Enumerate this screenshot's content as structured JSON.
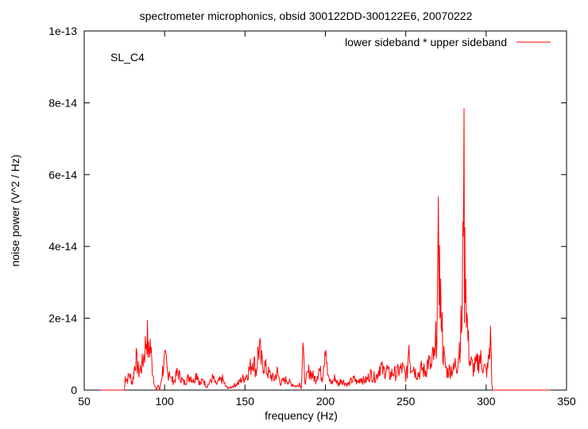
{
  "chart_data": {
    "type": "line",
    "title": "spectrometer microphonics, obsid 300122DD-300122E6, 20070222",
    "xlabel": "frequency (Hz)",
    "ylabel": "noise power (V^2 / Hz)",
    "xlim": [
      50,
      350
    ],
    "ylim": [
      0,
      1e-13
    ],
    "x_ticks": [
      50,
      100,
      150,
      200,
      250,
      300,
      350
    ],
    "x_tick_labels": [
      "50",
      "100",
      "150",
      "200",
      "250",
      "300",
      "350"
    ],
    "y_ticks": [
      0,
      2e-14,
      4e-14,
      6e-14,
      8e-14,
      1e-13
    ],
    "y_tick_labels": [
      "0",
      "2e-14",
      "4e-14",
      "6e-14",
      "8e-14",
      "1e-13"
    ],
    "grid": false,
    "legend_position": "top-right",
    "annotation": "SL_C4",
    "series": [
      {
        "name": "lower sideband * upper sideband",
        "color": "#ff0000",
        "x": [
          60,
          75,
          75.5,
          77,
          78,
          80,
          82,
          84,
          86,
          88,
          89,
          90,
          91,
          92,
          93,
          94,
          95,
          96,
          97,
          98,
          98.5,
          99,
          100,
          101,
          102,
          103,
          104,
          106,
          108,
          110,
          112,
          114,
          116,
          118,
          120,
          122,
          124,
          126,
          128,
          130,
          132,
          134,
          136,
          138,
          140,
          142,
          144,
          146,
          148,
          150,
          152,
          154,
          155,
          156,
          157,
          158,
          159,
          160,
          162,
          164,
          166,
          168,
          170,
          172,
          174,
          176,
          178,
          180,
          182,
          184,
          185,
          186,
          187,
          188,
          190,
          192,
          194,
          196,
          198,
          199,
          200,
          201,
          202,
          204,
          206,
          208,
          210,
          212,
          214,
          216,
          218,
          220,
          222,
          224,
          226,
          228,
          230,
          232,
          234,
          236,
          238,
          240,
          242,
          244,
          246,
          248,
          250,
          251,
          252,
          253,
          254,
          256,
          258,
          260,
          262,
          264,
          266,
          267,
          268,
          269,
          270,
          270.5,
          271,
          271.5,
          272,
          273,
          274,
          275,
          276,
          278,
          280,
          281,
          282,
          283,
          284,
          285,
          285.5,
          286,
          286.5,
          287,
          288,
          289,
          290,
          292,
          294,
          296,
          298,
          300,
          301,
          302,
          303,
          303.5,
          304,
          320,
          340
        ],
        "values": [
          0,
          0,
          3.5e-15,
          3e-15,
          4.5e-15,
          2e-15,
          9e-15,
          5e-15,
          7e-15,
          1.2e-14,
          1.6e-14,
          1e-14,
          1.3e-14,
          8e-15,
          4e-15,
          1e-15,
          0,
          1.5e-15,
          0,
          3e-15,
          5e-15,
          6e-15,
          8e-15,
          7.5e-15,
          4e-15,
          6e-15,
          3e-15,
          2.5e-15,
          5e-15,
          3.5e-15,
          2e-15,
          3e-15,
          4e-15,
          2.5e-15,
          5e-15,
          1.5e-15,
          3e-15,
          1e-15,
          2e-15,
          3.5e-15,
          1.5e-15,
          2.5e-15,
          3e-15,
          1e-15,
          5e-16,
          1e-15,
          1.5e-15,
          2e-15,
          3e-15,
          3.5e-15,
          5e-15,
          7e-15,
          9e-15,
          7e-15,
          5e-15,
          1e-14,
          1.2e-14,
          8e-15,
          7e-15,
          5e-15,
          4e-15,
          3e-15,
          5e-15,
          2e-15,
          2.5e-15,
          3e-15,
          2e-15,
          1.5e-15,
          1e-15,
          2e-15,
          5e-16,
          1.4e-14,
          2.5e-15,
          3e-15,
          5.5e-15,
          4e-15,
          3e-15,
          6e-15,
          3.5e-15,
          8e-15,
          1.5e-14,
          6e-15,
          3e-15,
          2e-15,
          3.5e-15,
          1.5e-15,
          3e-15,
          2e-15,
          1.5e-15,
          2.5e-15,
          3e-15,
          2e-15,
          3.5e-15,
          2.5e-15,
          3e-15,
          4.5e-15,
          3.5e-15,
          4e-15,
          7e-15,
          5e-15,
          6e-15,
          4e-15,
          5e-15,
          4.5e-15,
          5.5e-15,
          6e-15,
          4e-15,
          5e-15,
          1.4e-14,
          6e-15,
          8e-15,
          5e-15,
          4.5e-15,
          6e-15,
          5e-15,
          8e-15,
          6e-15,
          1e-14,
          8e-15,
          1.6e-14,
          2.8e-14,
          4.7e-14,
          3.2e-14,
          1.8e-14,
          2.7e-14,
          1.2e-14,
          8e-15,
          6e-15,
          5e-15,
          6e-15,
          5.5e-15,
          8e-15,
          7e-15,
          1.1e-14,
          1.5e-14,
          2e-14,
          3.5e-14,
          8e-14,
          3e-14,
          4e-14,
          2e-14,
          1.2e-14,
          8e-15,
          6e-15,
          7e-15,
          9e-15,
          7e-15,
          5e-15,
          6e-15,
          1.1e-14,
          1.5e-14,
          2e-15,
          0,
          0,
          0
        ]
      }
    ]
  }
}
